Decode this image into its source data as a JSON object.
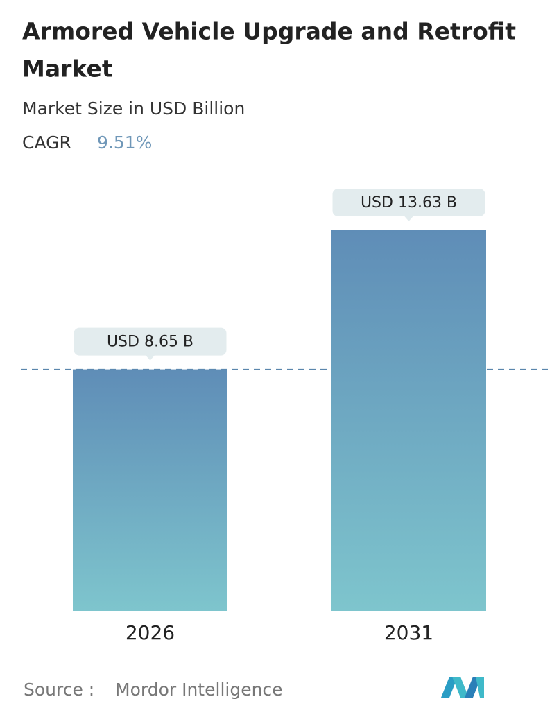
{
  "chart_data": {
    "type": "bar",
    "title": [
      "Armored Vehicle Upgrade and Retrofit",
      "Market"
    ],
    "subtitle": "Market Size in USD Billion",
    "cagr_label": "CAGR",
    "cagr_value": "9.51%",
    "categories": [
      "2026",
      "2031"
    ],
    "values": [
      8.65,
      13.63
    ],
    "value_labels": [
      "USD 8.65 B",
      "USD 13.63 B"
    ],
    "source_label": "Source :",
    "source": "Mordor Intelligence"
  }
}
